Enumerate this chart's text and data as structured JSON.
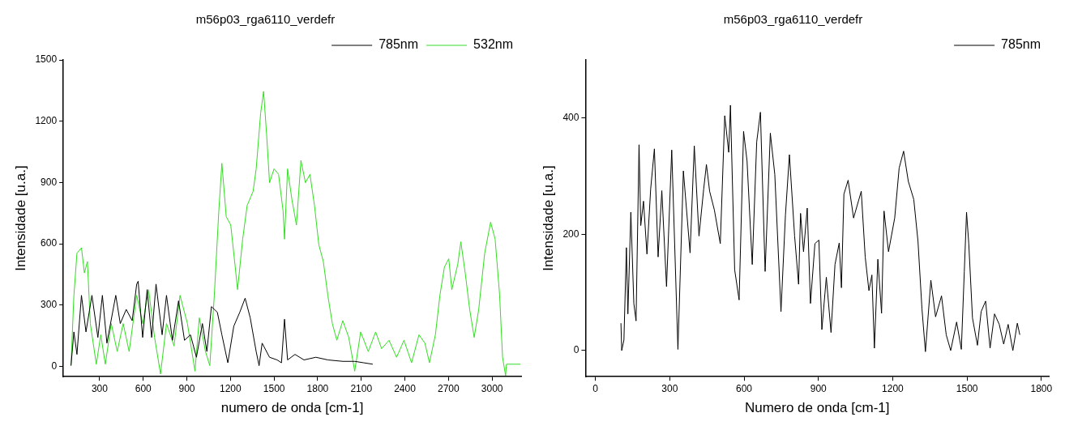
{
  "chart_data": [
    {
      "type": "line",
      "title": "m56p03_rga6110_verdefr",
      "xlabel": "numero de onda [cm-1]",
      "ylabel": "Intensidade [u.a.]",
      "xlim": [
        50,
        3200
      ],
      "xticks": [
        300,
        600,
        900,
        1200,
        1500,
        1800,
        2100,
        2400,
        2700,
        3000
      ],
      "ylim": [
        -50,
        1500
      ],
      "yticks": [
        0,
        300,
        600,
        900,
        1200,
        1500
      ],
      "grid": false,
      "legend": "top right",
      "marker": "none",
      "line_style": "solid",
      "series": [
        {
          "name": "785nm",
          "color": "#000000",
          "x": [
            103,
            123,
            144,
            175,
            206,
            247,
            288,
            319,
            350,
            411,
            442,
            483,
            524,
            555,
            565,
            596,
            627,
            658,
            688,
            730,
            760,
            801,
            843,
            884,
            925,
            966,
            1007,
            1038,
            1069,
            1110,
            1141,
            1182,
            1223,
            1264,
            1301,
            1336,
            1377,
            1397,
            1418,
            1469,
            1521,
            1551,
            1572,
            1593,
            1644,
            1706,
            1788,
            1870,
            1973,
            2055,
            2117,
            2179
          ],
          "values": [
            4,
            169,
            59,
            348,
            169,
            348,
            142,
            348,
            114,
            348,
            210,
            279,
            224,
            403,
            417,
            142,
            376,
            142,
            403,
            155,
            348,
            128,
            321,
            128,
            155,
            45,
            210,
            73,
            293,
            265,
            155,
            18,
            197,
            265,
            334,
            238,
            73,
            4,
            114,
            45,
            32,
            18,
            231,
            32,
            59,
            32,
            45,
            32,
            25,
            25,
            18,
            11
          ]
        },
        {
          "name": "532nm",
          "color": "#33dd22",
          "x": [
            103,
            123,
            144,
            175,
            195,
            216,
            236,
            277,
            308,
            339,
            380,
            421,
            462,
            503,
            555,
            596,
            637,
            678,
            719,
            760,
            812,
            853,
            904,
            956,
            986,
            1028,
            1058,
            1089,
            1120,
            1141,
            1171,
            1202,
            1233,
            1249,
            1284,
            1315,
            1356,
            1377,
            1408,
            1428,
            1449,
            1469,
            1500,
            1531,
            1562,
            1572,
            1593,
            1623,
            1654,
            1685,
            1716,
            1747,
            1778,
            1808,
            1839,
            1870,
            1901,
            1932,
            1973,
            2014,
            2055,
            2096,
            2148,
            2199,
            2240,
            2291,
            2343,
            2394,
            2446,
            2497,
            2538,
            2569,
            2610,
            2641,
            2672,
            2702,
            2723,
            2764,
            2785,
            2815,
            2846,
            2877,
            2908,
            2949,
            2990,
            3021,
            3052,
            3072,
            3093,
            3099,
            3196
          ],
          "values": [
            4,
            348,
            554,
            581,
            458,
            513,
            210,
            11,
            155,
            11,
            210,
            73,
            210,
            73,
            348,
            210,
            376,
            142,
            -37,
            210,
            100,
            348,
            210,
            -23,
            238,
            73,
            4,
            348,
            761,
            994,
            733,
            692,
            486,
            376,
            623,
            788,
            857,
            967,
            1241,
            1346,
            1132,
            899,
            967,
            940,
            761,
            623,
            967,
            816,
            692,
            1008,
            899,
            940,
            788,
            596,
            513,
            348,
            210,
            128,
            224,
            142,
            -23,
            169,
            73,
            169,
            87,
            128,
            45,
            128,
            18,
            155,
            114,
            18,
            155,
            348,
            486,
            527,
            376,
            500,
            610,
            458,
            279,
            142,
            279,
            554,
            706,
            623,
            348,
            45,
            -44,
            11,
            11
          ]
        }
      ]
    },
    {
      "type": "line",
      "title": "m56p03_rga6110_verdefr",
      "xlabel": "Numero de onda [cm-1]",
      "ylabel": "Intensidade [u.a.]",
      "xlim": [
        -40,
        1830
      ],
      "xticks": [
        0,
        300,
        600,
        900,
        1200,
        1500,
        1800
      ],
      "ylim": [
        -45,
        500
      ],
      "yticks": [
        0,
        200,
        400
      ],
      "grid": false,
      "legend": "top right",
      "marker": "none",
      "line_style": "solid",
      "series": [
        {
          "name": "785nm",
          "color": "#000000",
          "x": [
            103,
            106,
            115,
            125,
            131,
            143,
            155,
            164,
            176,
            183,
            194,
            208,
            223,
            238,
            253,
            268,
            287,
            308,
            333,
            355,
            382,
            399,
            418,
            437,
            448,
            461,
            480,
            504,
            522,
            538,
            545,
            562,
            580,
            598,
            612,
            633,
            651,
            666,
            685,
            706,
            724,
            749,
            767,
            783,
            804,
            820,
            828,
            840,
            855,
            868,
            886,
            902,
            914,
            932,
            951,
            967,
            984,
            993,
            1003,
            1020,
            1042,
            1073,
            1089,
            1104,
            1116,
            1126,
            1140,
            1155,
            1165,
            1183,
            1208,
            1226,
            1244,
            1263,
            1285,
            1302,
            1318,
            1332,
            1354,
            1373,
            1397,
            1416,
            1434,
            1458,
            1477,
            1489,
            1498,
            1507,
            1522,
            1542,
            1557,
            1575,
            1593,
            1611,
            1630,
            1648,
            1666,
            1685,
            1703,
            1713
          ],
          "values": [
            47,
            0,
            18,
            177,
            63,
            238,
            81,
            51,
            354,
            215,
            257,
            166,
            278,
            347,
            161,
            275,
            110,
            345,
            2,
            309,
            168,
            352,
            197,
            278,
            320,
            274,
            242,
            184,
            404,
            341,
            422,
            139,
            87,
            377,
            326,
            148,
            359,
            410,
            136,
            374,
            303,
            67,
            233,
            337,
            197,
            114,
            236,
            170,
            245,
            81,
            184,
            190,
            36,
            126,
            31,
            148,
            185,
            108,
            269,
            293,
            228,
            274,
            161,
            103,
            130,
            4,
            157,
            64,
            240,
            170,
            228,
            314,
            343,
            291,
            260,
            188,
            72,
            -2,
            121,
            58,
            94,
            27,
            0,
            49,
            2,
            136,
            238,
            184,
            56,
            9,
            67,
            85,
            4,
            63,
            45,
            11,
            45,
            0,
            47,
            27
          ]
        }
      ]
    }
  ]
}
